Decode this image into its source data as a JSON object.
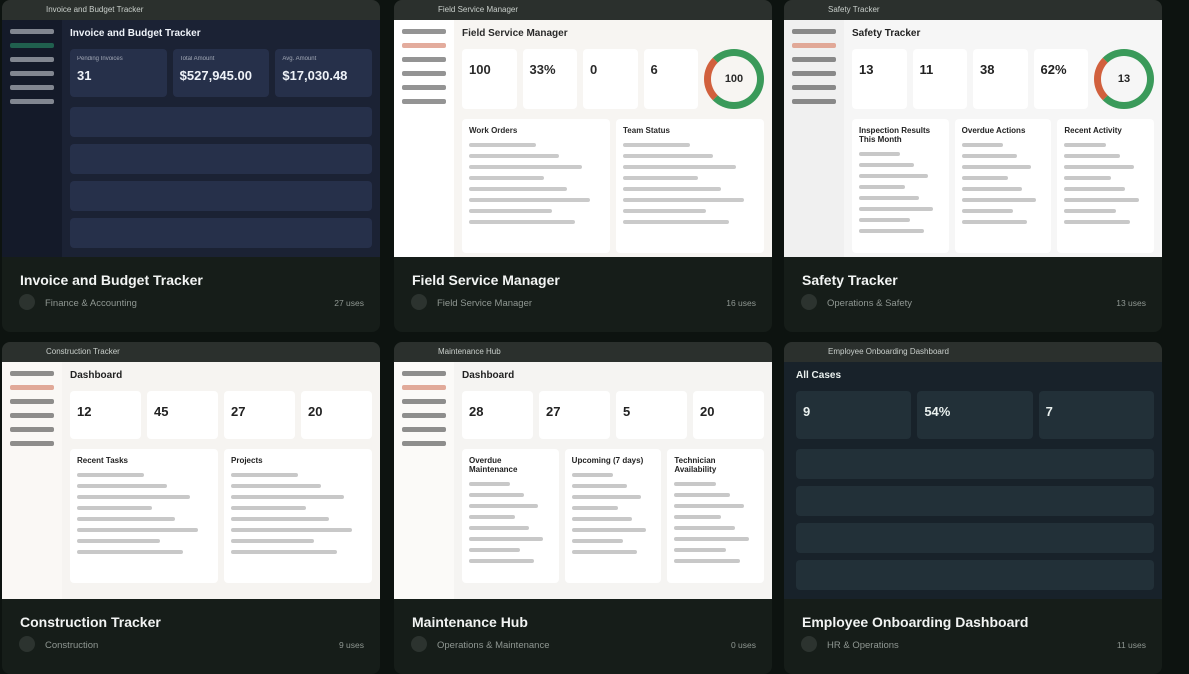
{
  "cards": [
    {
      "thumb_label": "Invoice and Budget Tracker",
      "title": "Invoice and Budget Tracker",
      "category": "Finance & Accounting",
      "uses": "27 uses",
      "preview": {
        "heading": "Invoice and Budget Tracker",
        "stats": [
          {
            "label": "Pending Invoices",
            "value": "31"
          },
          {
            "label": "Total Amount",
            "value": "$527,945.00"
          },
          {
            "label": "Avg. Amount",
            "value": "$17,030.48"
          }
        ],
        "panels": []
      }
    },
    {
      "thumb_label": "Field Service Manager",
      "title": "Field Service Manager",
      "category": "Field Service Manager",
      "uses": "16 uses",
      "preview": {
        "heading": "Field Service Manager",
        "stats": [
          {
            "value": "100"
          },
          {
            "value": "33%"
          },
          {
            "value": "0"
          },
          {
            "value": "6"
          }
        ],
        "ring": "100",
        "panels": [
          "Work Orders",
          "Team Status"
        ]
      }
    },
    {
      "thumb_label": "Safety Tracker",
      "title": "Safety Tracker",
      "category": "Operations & Safety",
      "uses": "13 uses",
      "preview": {
        "heading": "Safety Tracker",
        "stats": [
          {
            "value": "13"
          },
          {
            "value": "11"
          },
          {
            "value": "38"
          },
          {
            "value": "62%"
          }
        ],
        "ring": "13",
        "panels": [
          "Inspection Results This Month",
          "Overdue Actions",
          "Recent Activity"
        ]
      }
    },
    {
      "thumb_label": "Construction Tracker",
      "title": "Construction Tracker",
      "category": "Construction",
      "uses": "9 uses",
      "preview": {
        "heading": "Dashboard",
        "stats": [
          {
            "value": "12"
          },
          {
            "value": "45"
          },
          {
            "value": "27"
          },
          {
            "value": "20"
          }
        ],
        "panels": [
          "Recent Tasks",
          "Projects"
        ]
      }
    },
    {
      "thumb_label": "Maintenance Hub",
      "title": "Maintenance Hub",
      "category": "Operations & Maintenance",
      "uses": "0 uses",
      "preview": {
        "heading": "Dashboard",
        "stats": [
          {
            "value": "28"
          },
          {
            "value": "27"
          },
          {
            "value": "5"
          },
          {
            "value": "20"
          }
        ],
        "panels": [
          "Overdue Maintenance",
          "Upcoming (7 days)",
          "Technician Availability"
        ]
      }
    },
    {
      "thumb_label": "Employee Onboarding Dashboard",
      "title": "Employee Onboarding Dashboard",
      "category": "HR & Operations",
      "uses": "11 uses",
      "preview": {
        "heading": "All Cases",
        "stats": [
          {
            "value": "9"
          },
          {
            "value": "54%"
          },
          {
            "value": "7"
          }
        ],
        "panels": []
      }
    }
  ]
}
